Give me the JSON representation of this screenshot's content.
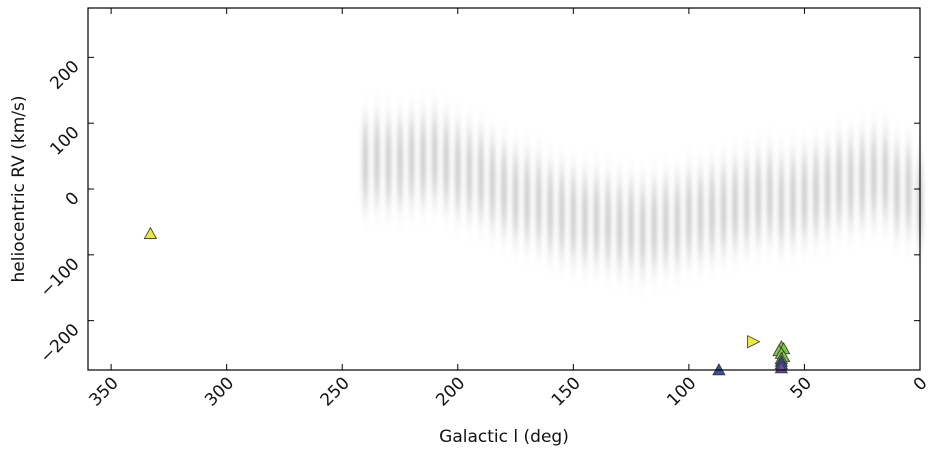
{
  "chart_data": {
    "type": "scatter",
    "xlabel": "Galactic l (deg)",
    "ylabel": "heliocentric RV (km/s)",
    "xlim": [
      360,
      0
    ],
    "ylim": [
      -275,
      275
    ],
    "xticks": [
      350,
      300,
      250,
      200,
      150,
      100,
      50,
      0
    ],
    "yticks": [
      {
        "value": -200,
        "label": "−200"
      },
      {
        "value": -100,
        "label": "−100"
      },
      0,
      100,
      200
    ],
    "grid": false,
    "series": [
      {
        "color": "#8a8f8c",
        "marker": "stripe",
        "x": [
          240,
          235,
          230,
          225,
          220,
          215,
          210,
          205,
          200,
          195,
          190,
          185,
          180,
          175,
          170,
          165,
          160,
          155,
          150,
          145,
          140,
          135,
          130,
          125,
          120,
          115,
          110,
          105,
          100,
          95,
          90,
          85,
          80,
          75,
          70,
          65,
          60,
          55,
          50,
          45,
          40,
          35,
          30,
          25,
          20,
          15,
          10,
          5,
          0
        ],
        "values": [
          40,
          45,
          40,
          40,
          45,
          45,
          50,
          40,
          30,
          25,
          20,
          10,
          0,
          -10,
          -15,
          -20,
          -30,
          -35,
          -40,
          -45,
          -45,
          -50,
          -55,
          -55,
          -60,
          -55,
          -50,
          -50,
          -40,
          -40,
          -35,
          -30,
          -25,
          -20,
          -15,
          -10,
          -20,
          -15,
          -10,
          -5,
          0,
          10,
          10,
          15,
          20,
          20,
          0,
          0,
          -20
        ]
      },
      {
        "color": "#e8e84a",
        "marker": "triangle-up",
        "x": [
          333
        ],
        "values": [
          -68
        ]
      },
      {
        "color": "#e8e84a",
        "marker": "triangle-right",
        "x": [
          72
        ],
        "values": [
          -232
        ]
      },
      {
        "color": "#7fc846",
        "marker": "triangle-up",
        "x": [
          60,
          59,
          61,
          60,
          59,
          60
        ],
        "values": [
          -240,
          -243,
          -246,
          -250,
          -255,
          -258
        ]
      },
      {
        "color": "#3b4f9a",
        "marker": "triangle-up",
        "x": [
          60,
          60,
          87
        ],
        "values": [
          -262,
          -266,
          -275
        ]
      },
      {
        "color": "#6b4aa0",
        "marker": "triangle-up",
        "x": [
          60
        ],
        "values": [
          -272
        ]
      }
    ]
  }
}
